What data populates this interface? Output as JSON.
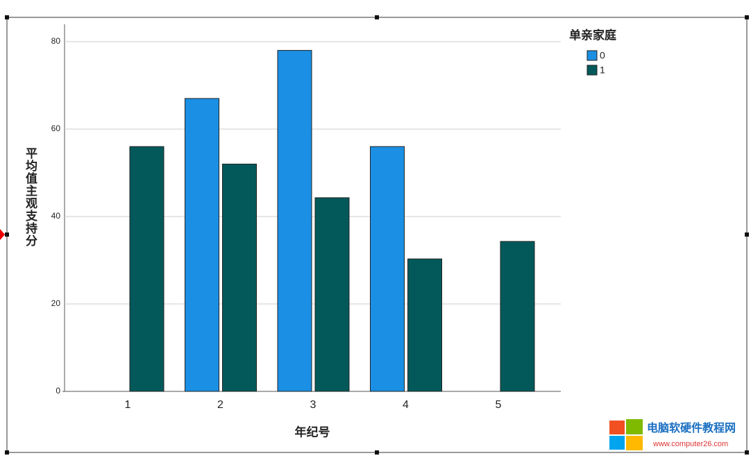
{
  "chart_data": {
    "type": "bar",
    "x_label": "年纪号",
    "y_label": "平均值主观支持分",
    "legend_title": "单亲家庭",
    "categories": [
      "1",
      "2",
      "3",
      "4",
      "5"
    ],
    "series": [
      {
        "name": "0",
        "color": "#1a8fe3",
        "values": [
          null,
          67,
          78,
          56,
          null
        ]
      },
      {
        "name": "1",
        "color": "#03595a",
        "values": [
          56,
          52,
          44.3,
          30.3,
          34.3
        ]
      }
    ],
    "ylim": [
      0,
      80
    ],
    "yticks": [
      0,
      20,
      40,
      60,
      80
    ],
    "grid": true,
    "legend": "top-right"
  },
  "watermark": {
    "title": "电脑软硬件教程网",
    "url": "www.computer26.com"
  }
}
